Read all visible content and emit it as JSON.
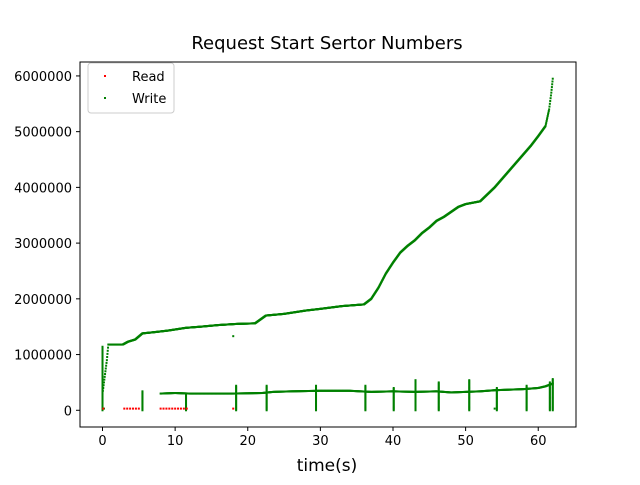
{
  "chart_data": {
    "type": "scatter",
    "title": "Request Start Sertor Numbers",
    "xlabel": "time(s)",
    "ylabel": "",
    "xlim": [
      -3.1,
      65.2
    ],
    "ylim": [
      -300000,
      6250000
    ],
    "xticks": [
      0,
      10,
      20,
      30,
      40,
      50,
      60
    ],
    "xtick_labels": [
      "0",
      "10",
      "20",
      "30",
      "40",
      "50",
      "60"
    ],
    "yticks": [
      0,
      1000000,
      2000000,
      3000000,
      4000000,
      5000000,
      6000000
    ],
    "ytick_labels": [
      "0",
      "1000000",
      "2000000",
      "3000000",
      "4000000",
      "5000000",
      "6000000"
    ],
    "grid": false,
    "legend": {
      "position": "top-left"
    },
    "colors": {
      "Read": "#ff0000",
      "Write": "#008000"
    },
    "series": [
      {
        "name": "Read",
        "x": [
          0.1,
          3.0,
          3.4,
          3.8,
          4.2,
          4.6,
          5.0,
          8.0,
          8.4,
          8.8,
          9.2,
          9.6,
          10.0,
          10.4,
          10.8,
          11.2,
          11.6,
          18.0
        ],
        "y": [
          30000,
          30000,
          30000,
          30000,
          30000,
          30000,
          30000,
          30000,
          30000,
          30000,
          30000,
          30000,
          30000,
          30000,
          30000,
          30000,
          30000,
          30000
        ]
      },
      {
        "name": "Write",
        "main_curve": {
          "x": [
            0.0,
            0.2,
            0.4,
            0.6,
            0.8,
            2.8,
            3.5,
            4.5,
            5.5,
            7.0,
            9.0,
            10.5,
            11.5,
            13.5,
            16.0,
            18.5,
            21.0,
            22.5,
            25.0,
            28.0,
            30.0,
            33.0,
            36.0,
            37.0,
            38.0,
            39.0,
            40.0,
            41.0,
            42.0,
            43.0,
            44.0,
            45.0,
            46.0,
            47.0,
            48.0,
            49.0,
            50.0,
            52.0,
            54.0,
            55.0,
            56.0,
            57.0,
            58.0,
            59.0,
            60.0,
            61.0,
            61.5,
            61.8,
            62.0
          ],
          "y": [
            300000,
            500000,
            700000,
            900000,
            1180000,
            1180000,
            1230000,
            1270000,
            1380000,
            1400000,
            1430000,
            1460000,
            1480000,
            1500000,
            1530000,
            1550000,
            1560000,
            1700000,
            1730000,
            1790000,
            1820000,
            1870000,
            1900000,
            2000000,
            2200000,
            2450000,
            2650000,
            2830000,
            2950000,
            3050000,
            3180000,
            3280000,
            3400000,
            3470000,
            3560000,
            3650000,
            3700000,
            3750000,
            4000000,
            4150000,
            4300000,
            4450000,
            4600000,
            4750000,
            4920000,
            5100000,
            5400000,
            5700000,
            5950000
          ]
        },
        "baseline": {
          "x": [
            8.0,
            10.0,
            12.0,
            15.0,
            18.0,
            22.0,
            23.5,
            26.0,
            30.0,
            34.0,
            37.0,
            40.0,
            43.0,
            46.0,
            48.0,
            50.0,
            52.0,
            54.0,
            56.0,
            58.0,
            60.0,
            61.0,
            62.0
          ],
          "y": [
            300000,
            310000,
            300000,
            300000,
            300000,
            310000,
            330000,
            340000,
            350000,
            350000,
            330000,
            340000,
            330000,
            340000,
            320000,
            330000,
            340000,
            360000,
            370000,
            380000,
            400000,
            430000,
            480000
          ]
        },
        "stripes_x": [
          0.0,
          5.5,
          11.5,
          18.4,
          22.6,
          29.4,
          36.2,
          40.1,
          43.1,
          46.3,
          50.5,
          54.3,
          58.4,
          61.6,
          62.0
        ],
        "stripe_top": [
          1150000,
          350000,
          300000,
          450000,
          450000,
          450000,
          450000,
          400000,
          550000,
          500000,
          550000,
          400000,
          450000,
          500000,
          570000
        ],
        "isolated": [
          {
            "x": 0.2,
            "y": 30000
          },
          {
            "x": 18.0,
            "y": 1330000
          },
          {
            "x": 54.0,
            "y": 30000
          }
        ]
      }
    ]
  }
}
